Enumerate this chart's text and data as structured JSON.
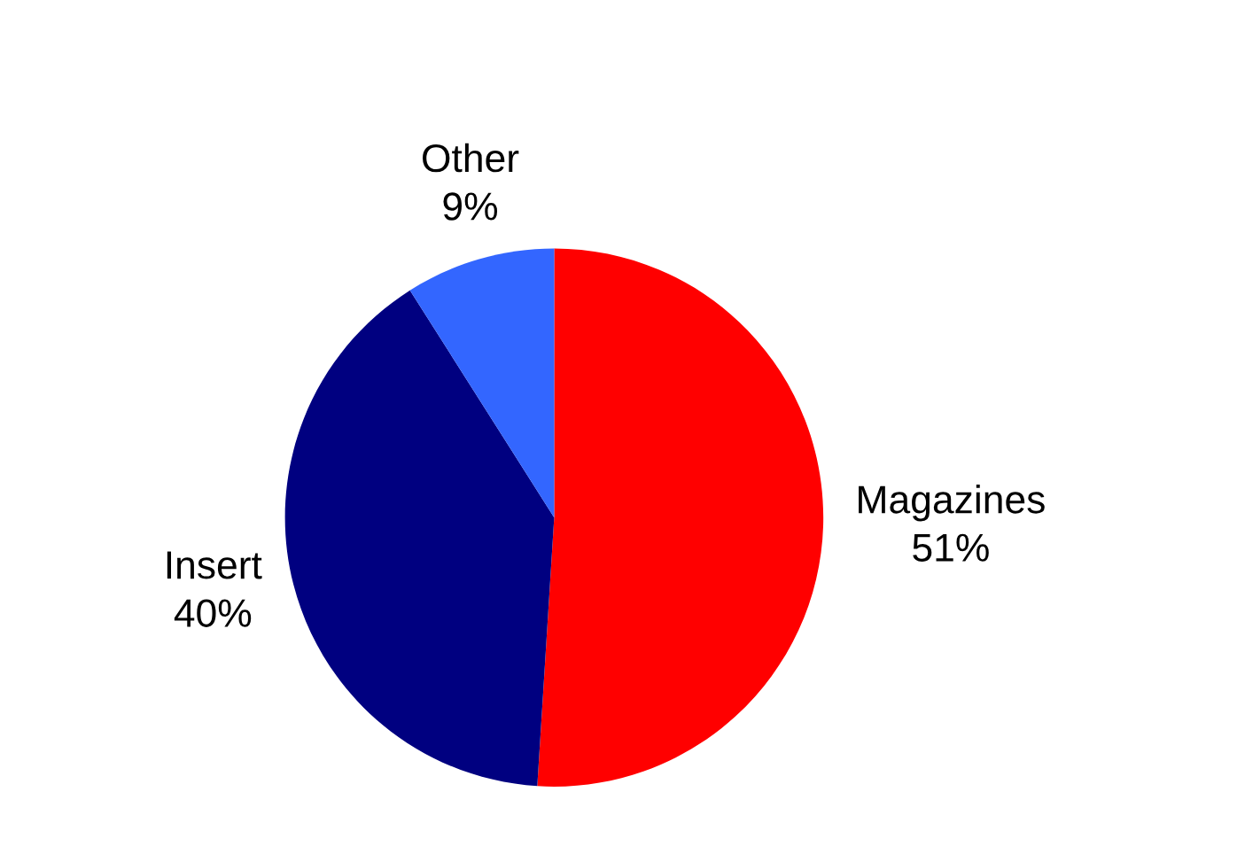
{
  "chart_data": {
    "type": "pie",
    "categories": [
      "Magazines",
      "Insert",
      "Other"
    ],
    "values": [
      51,
      40,
      9
    ],
    "value_labels": [
      "51%",
      "40%",
      "9%"
    ],
    "colors": [
      "#ff0000",
      "#000080",
      "#3366ff"
    ]
  }
}
